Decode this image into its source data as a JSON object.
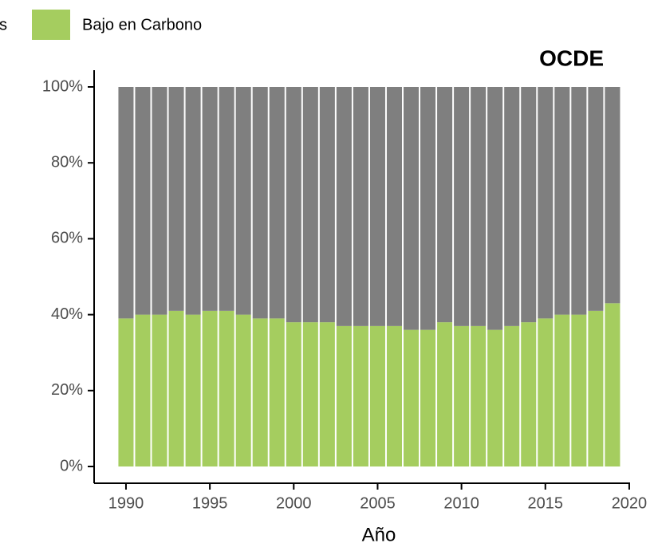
{
  "chart_data": {
    "type": "stacked_bar",
    "title": "OCDE",
    "xlabel": "Año",
    "x": [
      1990,
      1991,
      1992,
      1993,
      1994,
      1995,
      1996,
      1997,
      1998,
      1999,
      2000,
      2001,
      2002,
      2003,
      2004,
      2005,
      2006,
      2007,
      2008,
      2009,
      2010,
      2011,
      2012,
      2013,
      2014,
      2015,
      2016,
      2017,
      2018,
      2019
    ],
    "series": [
      {
        "name": "s",
        "color": "#7f7f7f",
        "values": [
          61,
          60,
          60,
          59,
          60,
          59,
          59,
          60,
          61,
          61,
          62,
          62,
          62,
          63,
          63,
          63,
          63,
          64,
          64,
          62,
          63,
          63,
          64,
          63,
          62,
          61,
          60,
          60,
          59,
          57
        ]
      },
      {
        "name": "Bajo en Carbono",
        "color": "#a5cd5f",
        "values": [
          39,
          40,
          40,
          41,
          40,
          41,
          41,
          40,
          39,
          39,
          38,
          38,
          38,
          37,
          37,
          37,
          37,
          36,
          36,
          38,
          37,
          37,
          36,
          37,
          38,
          39,
          40,
          40,
          41,
          43
        ]
      }
    ],
    "xlim": [
      1988.1,
      2020.05
    ],
    "xticks": [
      1990,
      1995,
      2000,
      2005,
      2010,
      2015,
      2020
    ],
    "ylim": [
      0,
      100
    ],
    "yticks": [
      {
        "value": 0,
        "label": "0%"
      },
      {
        "value": 20,
        "label": "20%"
      },
      {
        "value": 40,
        "label": "40%"
      },
      {
        "value": 60,
        "label": "60%"
      },
      {
        "value": 80,
        "label": "80%"
      },
      {
        "value": 100,
        "label": "100%"
      }
    ]
  }
}
